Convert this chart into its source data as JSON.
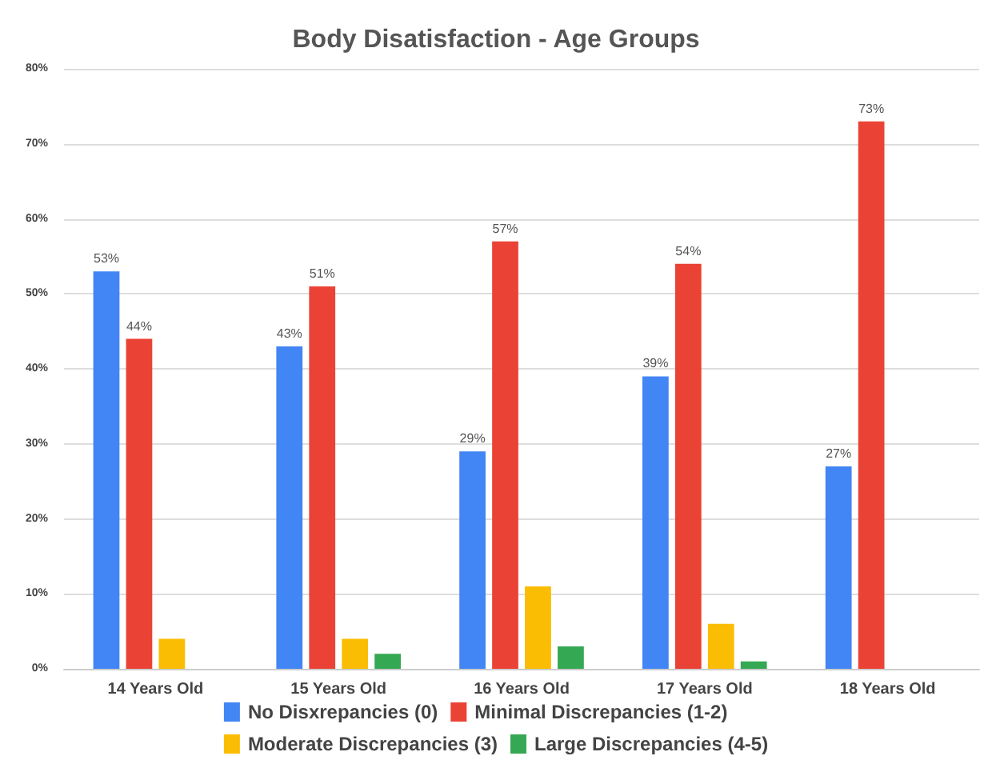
{
  "chart_data": {
    "type": "bar",
    "title": "Body Disatisfaction - Age Groups",
    "categories": [
      "14 Years Old",
      "15 Years Old",
      "16 Years Old",
      "17 Years Old",
      "18 Years Old"
    ],
    "series": [
      {
        "name": "No Disxrepancies (0)",
        "color": "#4285f4",
        "values": [
          53,
          43,
          29,
          39,
          27
        ],
        "value_labels": [
          "53%",
          "43%",
          "29%",
          "39%",
          "27%"
        ]
      },
      {
        "name": "Minimal Discrepancies (1-2)",
        "color": "#ea4335",
        "values": [
          44,
          51,
          57,
          54,
          73
        ],
        "value_labels": [
          "44%",
          "51%",
          "57%",
          "54%",
          "73%"
        ]
      },
      {
        "name": "Moderate Discrepancies (3)",
        "color": "#fbbc04",
        "values": [
          4,
          4,
          11,
          6,
          null
        ]
      },
      {
        "name": "Large Discrepancies (4-5)",
        "color": "#34a853",
        "values": [
          null,
          2,
          3,
          1,
          null
        ]
      }
    ],
    "ylim": [
      0,
      80
    ],
    "yticks": [
      {
        "value": 0,
        "label": "0%"
      },
      {
        "value": 10,
        "label": "10%"
      },
      {
        "value": 20,
        "label": "20%"
      },
      {
        "value": 30,
        "label": "30%"
      },
      {
        "value": 40,
        "label": "40%"
      },
      {
        "value": 50,
        "label": "50%"
      },
      {
        "value": 60,
        "label": "60%"
      },
      {
        "value": 70,
        "label": "70%"
      },
      {
        "value": 80,
        "label": "80%"
      }
    ],
    "grid": "y",
    "legend": "bottom"
  }
}
